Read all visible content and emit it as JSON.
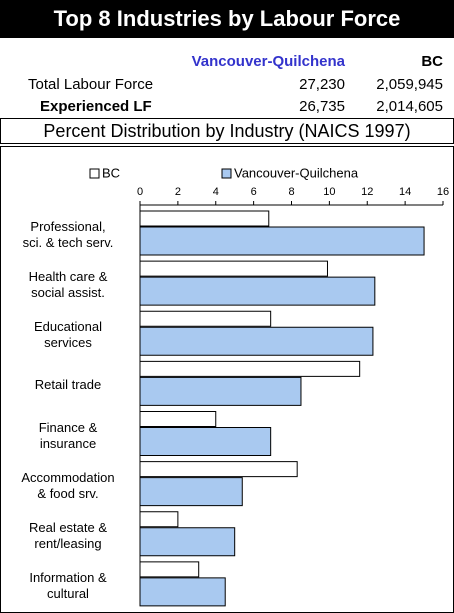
{
  "header": {
    "title": "Top 8 Industries by Labour Force"
  },
  "table": {
    "columns": [
      "Vancouver-Quilchena",
      "BC"
    ],
    "rows": [
      [
        "Total Labour Force",
        "27,230",
        "2,059,945"
      ],
      [
        "Experienced LF",
        "26,735",
        "2,014,605"
      ]
    ]
  },
  "chart_data": {
    "type": "barh",
    "title": "Percent Distribution by Industry (NAICS 1997)",
    "categories": [
      "Professional,\nsci. & tech serv.",
      "Health care &\nsocial assist.",
      "Educational\nservices",
      "Retail trade",
      "Finance &\ninsurance",
      "Accommodation\n& food srv.",
      "Real estate &\nrent/leasing",
      "Information &\ncultural"
    ],
    "series": [
      {
        "name": "BC",
        "color": "#ffffff",
        "values": [
          6.8,
          9.9,
          6.9,
          11.6,
          4.0,
          8.3,
          2.0,
          3.1
        ]
      },
      {
        "name": "Vancouver-Quilchena",
        "color": "#a9c9f0",
        "values": [
          15.0,
          12.4,
          12.3,
          8.5,
          6.9,
          5.4,
          5.0,
          4.5
        ]
      }
    ],
    "xlim": [
      0,
      16
    ],
    "xticks": [
      0,
      2,
      4,
      6,
      8,
      10,
      12,
      14,
      16
    ],
    "grid": false,
    "legend": "top"
  }
}
